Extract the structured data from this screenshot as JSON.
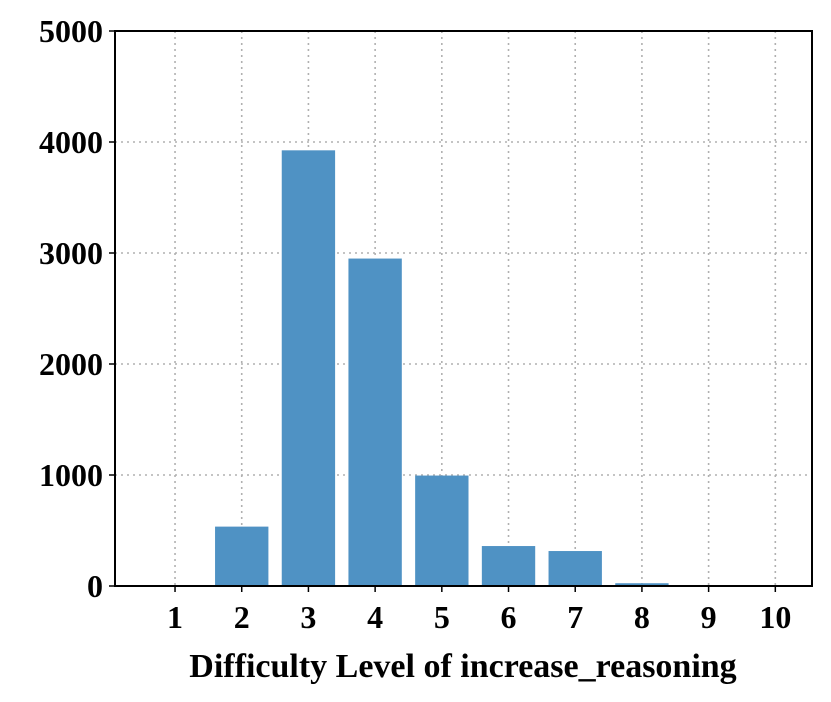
{
  "chart_data": {
    "type": "bar",
    "title": "",
    "xlabel": "Difficulty Level of increase_reasoning",
    "ylabel": "",
    "categories": [
      "1",
      "2",
      "3",
      "4",
      "5",
      "6",
      "7",
      "8",
      "9",
      "10"
    ],
    "values": [
      0,
      535,
      3925,
      2950,
      995,
      360,
      315,
      25,
      0,
      0
    ],
    "ylim": [
      0,
      5000
    ],
    "yticks": [
      "0",
      "1000",
      "2000",
      "3000",
      "4000",
      "5000"
    ],
    "grid": true,
    "bar_color": "#4f92c4"
  }
}
